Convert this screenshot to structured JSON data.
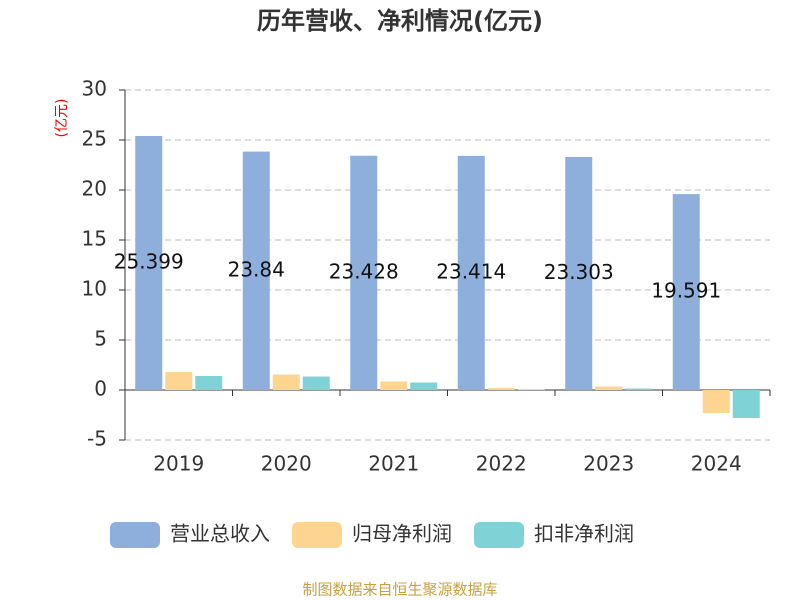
{
  "chart_data": {
    "type": "bar",
    "title": "历年营收、净利情况(亿元)",
    "y_label": "(亿元)",
    "footer": "制图数据来自恒生聚源数据库",
    "categories": [
      "2019",
      "2020",
      "2021",
      "2022",
      "2023",
      "2024"
    ],
    "series": [
      {
        "name": "营业总收入",
        "color": "#8eaedb",
        "values": [
          25.399,
          23.84,
          23.428,
          23.414,
          23.303,
          19.591
        ],
        "show_labels": true
      },
      {
        "name": "归母净利润",
        "color": "#fdd591",
        "values": [
          1.8,
          1.55,
          0.85,
          0.2,
          0.35,
          -2.3
        ]
      },
      {
        "name": "扣非净利润",
        "color": "#7fd3d6",
        "values": [
          1.4,
          1.35,
          0.75,
          0.05,
          0.15,
          -2.8
        ]
      }
    ],
    "ylim": [
      -5,
      30
    ],
    "yticks": [
      -5,
      0,
      5,
      10,
      15,
      20,
      25,
      30
    ],
    "grid": true
  }
}
